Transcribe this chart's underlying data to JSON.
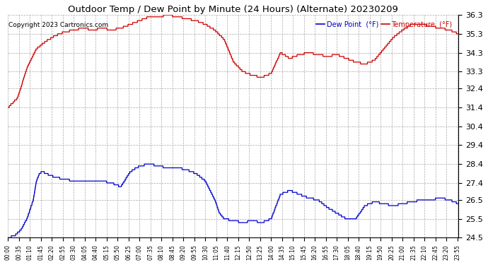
{
  "title": "Outdoor Temp / Dew Point by Minute (24 Hours) (Alternate) 20230209",
  "copyright": "Copyright 2023 Cartronics.com",
  "legend_dew": "Dew Point  (°F)",
  "legend_temp": "Temperature  (°F)",
  "temp_color": "#cc0000",
  "dew_color": "#0000cc",
  "bg_color": "#ffffff",
  "plot_bg_color": "#ffffff",
  "grid_color": "#aaaaaa",
  "title_color": "#000000",
  "copyright_color": "#000000",
  "legend_dew_color": "#0000cc",
  "legend_temp_color": "#cc0000",
  "ylim": [
    24.5,
    36.3
  ],
  "yticks": [
    24.5,
    25.5,
    26.5,
    27.4,
    28.4,
    29.4,
    30.4,
    31.4,
    32.4,
    33.3,
    34.3,
    35.3,
    36.3
  ],
  "xlabel_rotation": 90,
  "figsize": [
    6.9,
    3.75
  ],
  "dpi": 100,
  "temp_keypoints": [
    [
      0,
      31.4
    ],
    [
      30,
      31.9
    ],
    [
      60,
      33.5
    ],
    [
      90,
      34.5
    ],
    [
      120,
      34.9
    ],
    [
      150,
      35.2
    ],
    [
      180,
      35.4
    ],
    [
      210,
      35.5
    ],
    [
      240,
      35.6
    ],
    [
      270,
      35.5
    ],
    [
      300,
      35.6
    ],
    [
      330,
      35.5
    ],
    [
      360,
      35.6
    ],
    [
      390,
      35.8
    ],
    [
      420,
      36.0
    ],
    [
      450,
      36.2
    ],
    [
      480,
      36.2
    ],
    [
      510,
      36.3
    ],
    [
      540,
      36.2
    ],
    [
      570,
      36.1
    ],
    [
      600,
      36.0
    ],
    [
      630,
      35.8
    ],
    [
      660,
      35.5
    ],
    [
      690,
      35.0
    ],
    [
      720,
      33.8
    ],
    [
      750,
      33.3
    ],
    [
      780,
      33.1
    ],
    [
      810,
      33.0
    ],
    [
      840,
      33.2
    ],
    [
      870,
      34.3
    ],
    [
      900,
      34.0
    ],
    [
      930,
      34.2
    ],
    [
      960,
      34.3
    ],
    [
      990,
      34.2
    ],
    [
      1020,
      34.1
    ],
    [
      1050,
      34.2
    ],
    [
      1080,
      34.0
    ],
    [
      1110,
      33.8
    ],
    [
      1140,
      33.7
    ],
    [
      1170,
      33.9
    ],
    [
      1200,
      34.5
    ],
    [
      1230,
      35.1
    ],
    [
      1260,
      35.5
    ],
    [
      1290,
      35.8
    ],
    [
      1320,
      35.8
    ],
    [
      1350,
      35.7
    ],
    [
      1380,
      35.6
    ],
    [
      1410,
      35.5
    ],
    [
      1439,
      35.3
    ]
  ],
  "dew_keypoints": [
    [
      0,
      24.5
    ],
    [
      20,
      24.6
    ],
    [
      40,
      24.9
    ],
    [
      60,
      25.5
    ],
    [
      80,
      26.5
    ],
    [
      90,
      27.5
    ],
    [
      100,
      27.9
    ],
    [
      110,
      28.0
    ],
    [
      120,
      27.9
    ],
    [
      150,
      27.7
    ],
    [
      180,
      27.6
    ],
    [
      210,
      27.5
    ],
    [
      240,
      27.5
    ],
    [
      270,
      27.5
    ],
    [
      300,
      27.5
    ],
    [
      330,
      27.4
    ],
    [
      360,
      27.2
    ],
    [
      390,
      28.0
    ],
    [
      420,
      28.3
    ],
    [
      450,
      28.4
    ],
    [
      480,
      28.3
    ],
    [
      510,
      28.2
    ],
    [
      540,
      28.2
    ],
    [
      570,
      28.1
    ],
    [
      600,
      27.9
    ],
    [
      630,
      27.5
    ],
    [
      660,
      26.5
    ],
    [
      675,
      25.8
    ],
    [
      690,
      25.5
    ],
    [
      720,
      25.4
    ],
    [
      750,
      25.3
    ],
    [
      780,
      25.4
    ],
    [
      810,
      25.3
    ],
    [
      840,
      25.5
    ],
    [
      870,
      26.8
    ],
    [
      900,
      27.0
    ],
    [
      930,
      26.8
    ],
    [
      960,
      26.6
    ],
    [
      990,
      26.5
    ],
    [
      1020,
      26.1
    ],
    [
      1050,
      25.8
    ],
    [
      1080,
      25.5
    ],
    [
      1110,
      25.5
    ],
    [
      1140,
      26.2
    ],
    [
      1170,
      26.4
    ],
    [
      1200,
      26.3
    ],
    [
      1230,
      26.2
    ],
    [
      1260,
      26.3
    ],
    [
      1290,
      26.4
    ],
    [
      1320,
      26.5
    ],
    [
      1350,
      26.5
    ],
    [
      1380,
      26.6
    ],
    [
      1410,
      26.5
    ],
    [
      1439,
      26.3
    ]
  ]
}
